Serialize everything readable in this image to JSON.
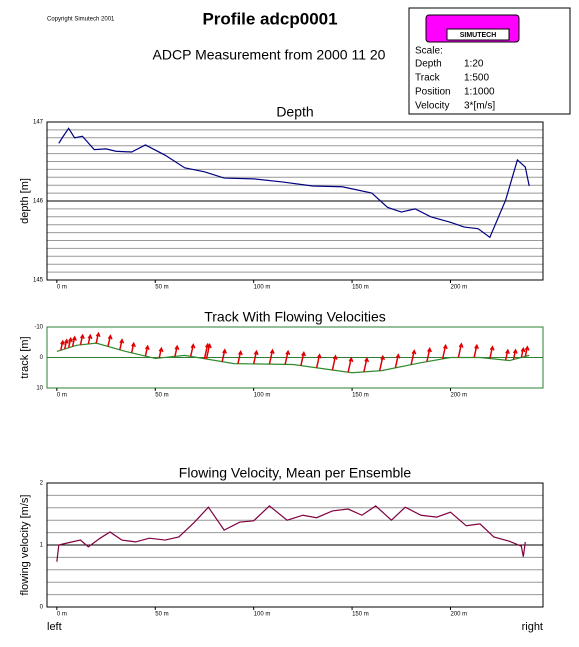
{
  "header": {
    "copyright": "Copyright Simutech 2001",
    "title": "Profile adcp0001",
    "subtitle": "ADCP Measurement from 2000 11 20",
    "logo": "SIMUTECH",
    "scale": {
      "title": "Scale:",
      "rows": [
        [
          "Depth",
          "1:20"
        ],
        [
          "Track",
          "1:500"
        ],
        [
          "Position",
          "1:1000"
        ],
        [
          "Velocity",
          "3*[m/s]"
        ]
      ]
    }
  },
  "chart_data": [
    {
      "type": "line",
      "title": "Depth",
      "ylabel": "depth [m]",
      "color": "#000080",
      "frame_color": "#000000",
      "grid_step": 0.1,
      "xlim": [
        -5,
        247
      ],
      "xticks": [
        {
          "value": 0,
          "label": "0 m"
        },
        {
          "value": 50,
          "label": "50 m"
        },
        {
          "value": 100,
          "label": "100 m"
        },
        {
          "value": 150,
          "label": "150 m"
        },
        {
          "value": 200,
          "label": "200 m"
        }
      ],
      "ylim": [
        145,
        147
      ],
      "yticks": [
        145,
        146,
        147
      ],
      "y_inverted": false,
      "x": [
        1,
        3,
        6,
        9,
        13,
        19,
        25,
        30,
        38,
        45,
        55,
        65,
        75,
        85,
        100,
        115,
        130,
        145,
        160,
        168,
        175,
        182,
        190,
        200,
        207,
        214,
        220,
        228,
        234,
        238,
        240
      ],
      "values": [
        146.73,
        146.81,
        146.92,
        146.8,
        146.82,
        146.65,
        146.66,
        146.63,
        146.62,
        146.71,
        146.58,
        146.42,
        146.37,
        146.29,
        146.28,
        146.24,
        146.19,
        146.18,
        146.1,
        145.92,
        145.86,
        145.9,
        145.8,
        145.73,
        145.67,
        145.65,
        145.54,
        146.01,
        146.52,
        146.43,
        146.19
      ]
    },
    {
      "type": "line",
      "title": "Track With Flowing Velocities",
      "ylabel": "track [m]",
      "color": "#2e8b2e",
      "frame_color": "#2e7d32",
      "grid_step": 10,
      "xlim": [
        -5,
        247
      ],
      "xticks": [
        {
          "value": 0,
          "label": "0 m"
        },
        {
          "value": 50,
          "label": "50 m"
        },
        {
          "value": 100,
          "label": "100 m"
        },
        {
          "value": 150,
          "label": "150 m"
        },
        {
          "value": 200,
          "label": "200 m"
        }
      ],
      "ylim": [
        -10,
        10
      ],
      "yticks": [
        -10,
        0,
        10
      ],
      "y_inverted": true,
      "x": [
        0,
        10,
        20,
        35,
        50,
        65,
        90,
        120,
        150,
        165,
        185,
        200,
        215,
        230,
        240
      ],
      "values": [
        -2,
        -4,
        -4.7,
        -2,
        0.3,
        -0.7,
        2,
        2.3,
        5,
        4.3,
        1.7,
        0,
        0,
        1,
        -0.7
      ],
      "arrows": {
        "color": "#e00000",
        "x": [
          2,
          4,
          6,
          8,
          12,
          16,
          20,
          26,
          32,
          38,
          45,
          52,
          60,
          68,
          75,
          76,
          84,
          92,
          100,
          108,
          116,
          124,
          132,
          140,
          148,
          156,
          164,
          172,
          180,
          188,
          196,
          204,
          212,
          220,
          228,
          232,
          236,
          238
        ],
        "values": [
          1.0,
          1.0,
          1.03,
          1.05,
          1.08,
          0.97,
          1.1,
          1.2,
          1.1,
          1.05,
          1.1,
          1.08,
          1.13,
          1.3,
          1.6,
          1.6,
          1.3,
          1.35,
          1.4,
          1.55,
          1.45,
          1.45,
          1.45,
          1.55,
          1.55,
          1.5,
          1.6,
          1.45,
          1.55,
          1.45,
          1.5,
          1.5,
          1.35,
          1.3,
          1.1,
          1.05,
          1.0,
          1.05
        ]
      }
    },
    {
      "type": "line",
      "title": "Flowing Velocity, Mean per Ensemble",
      "ylabel": "flowing velocity [m/s]",
      "color": "#800040",
      "frame_color": "#000000",
      "grid_step": 0.2,
      "xlim": [
        -5,
        247
      ],
      "xticks": [
        {
          "value": 0,
          "label": "0 m"
        },
        {
          "value": 50,
          "label": "50 m"
        },
        {
          "value": 100,
          "label": "100 m"
        },
        {
          "value": 150,
          "label": "150 m"
        },
        {
          "value": 200,
          "label": "200 m"
        }
      ],
      "ylim": [
        0,
        2
      ],
      "yticks": [
        0,
        1,
        2
      ],
      "y_inverted": false,
      "x": [
        0,
        1,
        5,
        12,
        16,
        22,
        27,
        33,
        40,
        47,
        55,
        62,
        70,
        77,
        85,
        93,
        100,
        108,
        117,
        125,
        132,
        140,
        148,
        155,
        162,
        170,
        177,
        185,
        193,
        200,
        208,
        215,
        222,
        230,
        236,
        237,
        238
      ],
      "values": [
        0.73,
        1.0,
        1.03,
        1.08,
        0.97,
        1.11,
        1.21,
        1.08,
        1.05,
        1.11,
        1.08,
        1.13,
        1.37,
        1.61,
        1.24,
        1.37,
        1.39,
        1.63,
        1.4,
        1.48,
        1.44,
        1.55,
        1.58,
        1.48,
        1.63,
        1.4,
        1.61,
        1.48,
        1.45,
        1.53,
        1.31,
        1.34,
        1.13,
        1.06,
        0.98,
        0.81,
        1.05
      ]
    }
  ],
  "footer": {
    "left": "left",
    "right": "right"
  }
}
